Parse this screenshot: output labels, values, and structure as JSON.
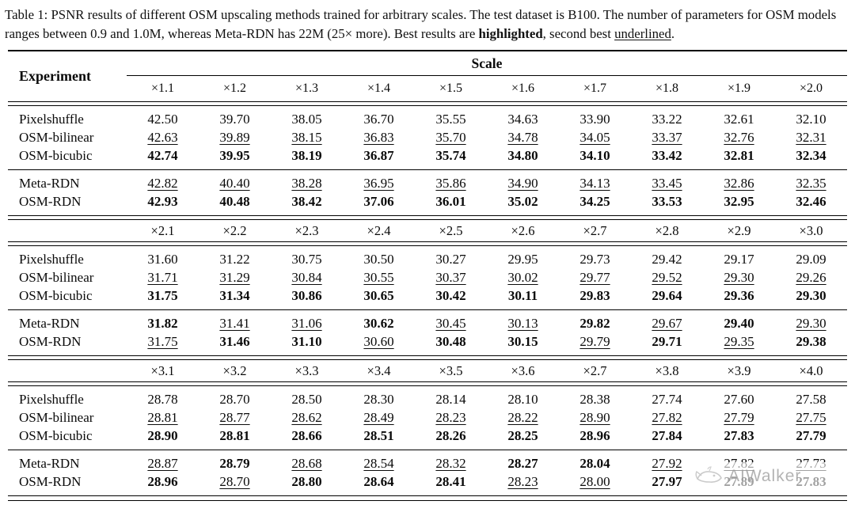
{
  "caption": {
    "text1": "Table 1: PSNR results of different OSM upscaling methods trained for arbitrary scales. The test dataset is B100. The number of parameters for OSM models ranges between 0.9 and 1.0M, whereas Meta-RDN has 22M (25× more). Best results are ",
    "bold_word": "highlighted",
    "text2": ", second best ",
    "underline_word": "underlined",
    "text3": "."
  },
  "table": {
    "experiment_header": "Experiment",
    "scale_header": "Scale",
    "sections": [
      {
        "scale_labels": [
          "×1.1",
          "×1.2",
          "×1.3",
          "×1.4",
          "×1.5",
          "×1.6",
          "×1.7",
          "×1.8",
          "×1.9",
          "×2.0"
        ],
        "groups": [
          {
            "rows": [
              {
                "label": "Pixelshuffle",
                "values": [
                  "42.50",
                  "39.70",
                  "38.05",
                  "36.70",
                  "35.55",
                  "34.63",
                  "33.90",
                  "33.22",
                  "32.61",
                  "32.10"
                ],
                "styles": [
                  "n",
                  "n",
                  "n",
                  "n",
                  "n",
                  "n",
                  "n",
                  "n",
                  "n",
                  "n"
                ]
              },
              {
                "label": "OSM-bilinear",
                "values": [
                  "42.63",
                  "39.89",
                  "38.15",
                  "36.83",
                  "35.70",
                  "34.78",
                  "34.05",
                  "33.37",
                  "32.76",
                  "32.31"
                ],
                "styles": [
                  "u",
                  "u",
                  "u",
                  "u",
                  "u",
                  "u",
                  "u",
                  "u",
                  "u",
                  "u"
                ]
              },
              {
                "label": "OSM-bicubic",
                "values": [
                  "42.74",
                  "39.95",
                  "38.19",
                  "36.87",
                  "35.74",
                  "34.80",
                  "34.10",
                  "33.42",
                  "32.81",
                  "32.34"
                ],
                "styles": [
                  "b",
                  "b",
                  "b",
                  "b",
                  "b",
                  "b",
                  "b",
                  "b",
                  "b",
                  "b"
                ]
              }
            ]
          },
          {
            "rows": [
              {
                "label": "Meta-RDN",
                "values": [
                  "42.82",
                  "40.40",
                  "38.28",
                  "36.95",
                  "35.86",
                  "34.90",
                  "34.13",
                  "33.45",
                  "32.86",
                  "32.35"
                ],
                "styles": [
                  "u",
                  "u",
                  "u",
                  "u",
                  "u",
                  "u",
                  "u",
                  "u",
                  "u",
                  "u"
                ]
              },
              {
                "label": "OSM-RDN",
                "values": [
                  "42.93",
                  "40.48",
                  "38.42",
                  "37.06",
                  "36.01",
                  "35.02",
                  "34.25",
                  "33.53",
                  "32.95",
                  "32.46"
                ],
                "styles": [
                  "b",
                  "b",
                  "b",
                  "b",
                  "b",
                  "b",
                  "b",
                  "b",
                  "b",
                  "b"
                ]
              }
            ]
          }
        ]
      },
      {
        "scale_labels": [
          "×2.1",
          "×2.2",
          "×2.3",
          "×2.4",
          "×2.5",
          "×2.6",
          "×2.7",
          "×2.8",
          "×2.9",
          "×3.0"
        ],
        "groups": [
          {
            "rows": [
              {
                "label": "Pixelshuffle",
                "values": [
                  "31.60",
                  "31.22",
                  "30.75",
                  "30.50",
                  "30.27",
                  "29.95",
                  "29.73",
                  "29.42",
                  "29.17",
                  "29.09"
                ],
                "styles": [
                  "n",
                  "n",
                  "n",
                  "n",
                  "n",
                  "n",
                  "n",
                  "n",
                  "n",
                  "n"
                ]
              },
              {
                "label": "OSM-bilinear",
                "values": [
                  "31.71",
                  "31.29",
                  "30.84",
                  "30.55",
                  "30.37",
                  "30.02",
                  "29.77",
                  "29.52",
                  "29.30",
                  "29.26"
                ],
                "styles": [
                  "u",
                  "u",
                  "u",
                  "u",
                  "u",
                  "u",
                  "u",
                  "u",
                  "u",
                  "u"
                ]
              },
              {
                "label": "OSM-bicubic",
                "values": [
                  "31.75",
                  "31.34",
                  "30.86",
                  "30.65",
                  "30.42",
                  "30.11",
                  "29.83",
                  "29.64",
                  "29.36",
                  "29.30"
                ],
                "styles": [
                  "b",
                  "b",
                  "b",
                  "b",
                  "b",
                  "b",
                  "b",
                  "b",
                  "b",
                  "b"
                ]
              }
            ]
          },
          {
            "rows": [
              {
                "label": "Meta-RDN",
                "values": [
                  "31.82",
                  "31.41",
                  "31.06",
                  "30.62",
                  "30.45",
                  "30.13",
                  "29.82",
                  "29.67",
                  "29.40",
                  "29.30"
                ],
                "styles": [
                  "b",
                  "u",
                  "u",
                  "b",
                  "u",
                  "u",
                  "b",
                  "u",
                  "b",
                  "u"
                ]
              },
              {
                "label": "OSM-RDN",
                "values": [
                  "31.75",
                  "31.46",
                  "31.10",
                  "30.60",
                  "30.48",
                  "30.15",
                  "29.79",
                  "29.71",
                  "29.35",
                  "29.38"
                ],
                "styles": [
                  "u",
                  "b",
                  "b",
                  "u",
                  "b",
                  "b",
                  "u",
                  "b",
                  "u",
                  "b"
                ]
              }
            ]
          }
        ]
      },
      {
        "scale_labels": [
          "×3.1",
          "×3.2",
          "×3.3",
          "×3.4",
          "×3.5",
          "×3.6",
          "×2.7",
          "×3.8",
          "×3.9",
          "×4.0"
        ],
        "groups": [
          {
            "rows": [
              {
                "label": "Pixelshuffle",
                "values": [
                  "28.78",
                  "28.70",
                  "28.50",
                  "28.30",
                  "28.14",
                  "28.10",
                  "28.38",
                  "27.74",
                  "27.60",
                  "27.58"
                ],
                "styles": [
                  "n",
                  "n",
                  "n",
                  "n",
                  "n",
                  "n",
                  "n",
                  "n",
                  "n",
                  "n"
                ]
              },
              {
                "label": "OSM-bilinear",
                "values": [
                  "28.81",
                  "28.77",
                  "28.62",
                  "28.49",
                  "28.23",
                  "28.22",
                  "28.90",
                  "27.82",
                  "27.79",
                  "27.75"
                ],
                "styles": [
                  "u",
                  "u",
                  "u",
                  "u",
                  "u",
                  "u",
                  "u",
                  "u",
                  "u",
                  "u"
                ]
              },
              {
                "label": "OSM-bicubic",
                "values": [
                  "28.90",
                  "28.81",
                  "28.66",
                  "28.51",
                  "28.26",
                  "28.25",
                  "28.96",
                  "27.84",
                  "27.83",
                  "27.79"
                ],
                "styles": [
                  "b",
                  "b",
                  "b",
                  "b",
                  "b",
                  "b",
                  "b",
                  "b",
                  "b",
                  "b"
                ]
              }
            ]
          },
          {
            "rows": [
              {
                "label": "Meta-RDN",
                "values": [
                  "28.87",
                  "28.79",
                  "28.68",
                  "28.54",
                  "28.32",
                  "28.27",
                  "28.04",
                  "27.92",
                  "27.82",
                  "27.73"
                ],
                "styles": [
                  "u",
                  "b",
                  "u",
                  "u",
                  "u",
                  "b",
                  "b",
                  "u",
                  "u",
                  "u"
                ]
              },
              {
                "label": "OSM-RDN",
                "values": [
                  "28.96",
                  "28.70",
                  "28.80",
                  "28.64",
                  "28.41",
                  "28.23",
                  "28.00",
                  "27.97",
                  "27.89",
                  "27.83"
                ],
                "styles": [
                  "b",
                  "u",
                  "b",
                  "b",
                  "b",
                  "u",
                  "u",
                  "b",
                  "b",
                  "b"
                ]
              }
            ]
          }
        ]
      }
    ]
  },
  "watermark": {
    "text": "AIWalker",
    "icon": "whale-icon"
  }
}
